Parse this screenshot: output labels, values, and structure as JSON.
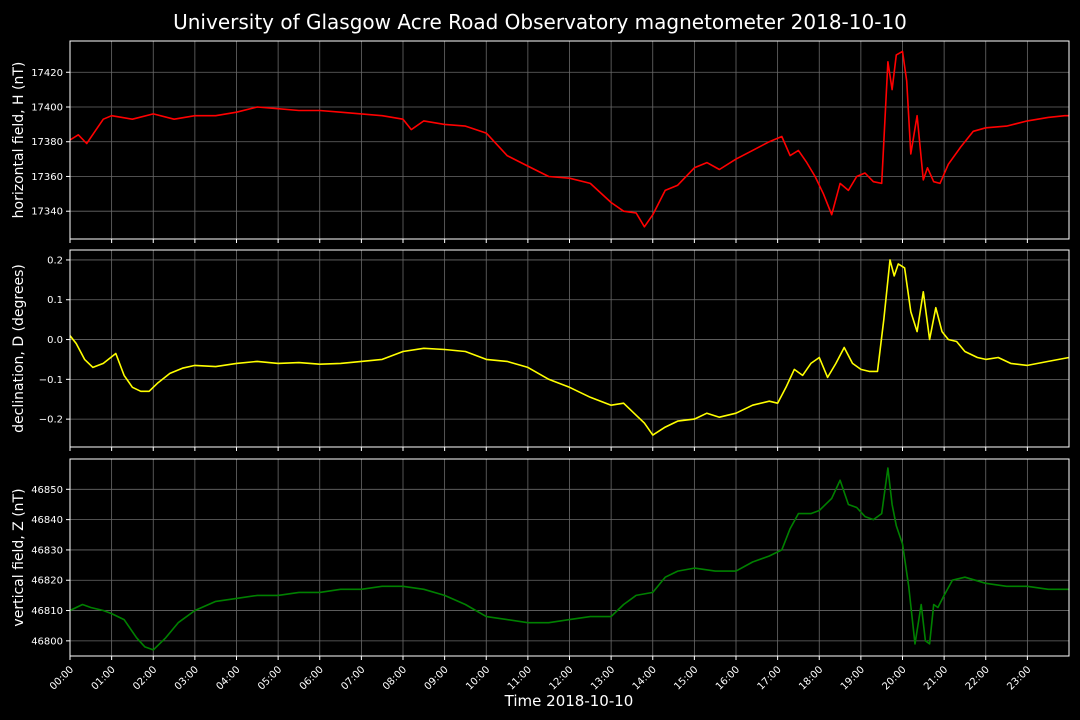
{
  "title": "University of Glasgow Acre Road Observatory magnetometer 2018-10-10",
  "xlabel": "Time 2018-10-10",
  "x_ticks": [
    "00:00",
    "01:00",
    "02:00",
    "03:00",
    "04:00",
    "05:00",
    "06:00",
    "07:00",
    "08:00",
    "09:00",
    "10:00",
    "11:00",
    "12:00",
    "13:00",
    "14:00",
    "15:00",
    "16:00",
    "17:00",
    "18:00",
    "19:00",
    "20:00",
    "21:00",
    "22:00",
    "23:00"
  ],
  "chart_data": [
    {
      "type": "line",
      "ylabel": "horizontal field, H (nT)",
      "ylim": [
        17324,
        17438
      ],
      "y_ticks": [
        17340,
        17360,
        17380,
        17400,
        17420
      ],
      "y_tick_labels": [
        "17340",
        "17360",
        "17380",
        "17400",
        "17420"
      ],
      "xlim_hours": [
        0,
        24
      ],
      "grid": true,
      "color": "#ff0000",
      "series": [
        {
          "x": [
            0,
            0.2,
            0.4,
            0.6,
            0.8,
            1,
            1.5,
            2,
            2.5,
            3,
            3.5,
            4,
            4.5,
            5,
            5.5,
            6,
            6.5,
            7,
            7.5,
            8,
            8.2,
            8.5,
            9,
            9.5,
            10,
            10.5,
            11,
            11.5,
            12,
            12.5,
            13,
            13.3,
            13.6,
            13.8,
            14,
            14.3,
            14.6,
            15,
            15.3,
            15.6,
            16,
            16.4,
            16.8,
            17.1,
            17.3,
            17.5,
            17.7,
            17.9,
            18.1,
            18.3,
            18.5,
            18.7,
            18.9,
            19.1,
            19.3,
            19.5,
            19.65,
            19.75,
            19.85,
            20,
            20.1,
            20.2,
            20.35,
            20.5,
            20.6,
            20.75,
            20.9,
            21.1,
            21.4,
            21.7,
            22,
            22.5,
            23,
            23.5,
            23.9,
            24
          ],
          "y": [
            17381,
            17384,
            17379,
            17386,
            17393,
            17395,
            17393,
            17396,
            17393,
            17395,
            17395,
            17397,
            17400,
            17399,
            17398,
            17398,
            17397,
            17396,
            17395,
            17393,
            17387,
            17392,
            17390,
            17389,
            17385,
            17372,
            17366,
            17360,
            17359,
            17356,
            17345,
            17340,
            17339,
            17331,
            17338,
            17352,
            17355,
            17365,
            17368,
            17364,
            17370,
            17375,
            17380,
            17383,
            17372,
            17375,
            17368,
            17360,
            17350,
            17338,
            17356,
            17352,
            17360,
            17362,
            17357,
            17356,
            17426,
            17410,
            17430,
            17432,
            17415,
            17373,
            17395,
            17358,
            17365,
            17357,
            17356,
            17367,
            17377,
            17386,
            17388,
            17389,
            17392,
            17394,
            17395,
            17395
          ]
        }
      ]
    },
    {
      "type": "line",
      "ylabel": "declination, D (degrees)",
      "ylim": [
        -0.27,
        0.225
      ],
      "y_ticks": [
        -0.2,
        -0.1,
        0.0,
        0.1,
        0.2
      ],
      "y_tick_labels": [
        "−0.2",
        "−0.1",
        "0.0",
        "0.1",
        "0.2"
      ],
      "xlim_hours": [
        0,
        24
      ],
      "grid": true,
      "color": "#ffff00",
      "series": [
        {
          "x": [
            0,
            0.15,
            0.35,
            0.55,
            0.8,
            1.1,
            1.3,
            1.5,
            1.7,
            1.9,
            2.1,
            2.4,
            2.7,
            3,
            3.5,
            4,
            4.5,
            5,
            5.5,
            6,
            6.5,
            7,
            7.5,
            8,
            8.5,
            9,
            9.5,
            10,
            10.5,
            11,
            11.5,
            12,
            12.5,
            13,
            13.3,
            13.6,
            13.8,
            14,
            14.3,
            14.6,
            15,
            15.3,
            15.6,
            16,
            16.4,
            16.8,
            17,
            17.2,
            17.4,
            17.6,
            17.8,
            18,
            18.2,
            18.4,
            18.6,
            18.8,
            19,
            19.2,
            19.4,
            19.55,
            19.7,
            19.8,
            19.9,
            20.05,
            20.2,
            20.35,
            20.5,
            20.65,
            20.8,
            20.95,
            21.1,
            21.3,
            21.5,
            21.8,
            22,
            22.3,
            22.6,
            23,
            23.5,
            24
          ],
          "y": [
            0.01,
            -0.01,
            -0.05,
            -0.07,
            -0.06,
            -0.035,
            -0.09,
            -0.12,
            -0.13,
            -0.13,
            -0.11,
            -0.085,
            -0.072,
            -0.065,
            -0.068,
            -0.06,
            -0.055,
            -0.06,
            -0.058,
            -0.062,
            -0.06,
            -0.055,
            -0.05,
            -0.03,
            -0.022,
            -0.025,
            -0.03,
            -0.05,
            -0.055,
            -0.07,
            -0.1,
            -0.12,
            -0.145,
            -0.165,
            -0.16,
            -0.19,
            -0.21,
            -0.24,
            -0.22,
            -0.205,
            -0.2,
            -0.185,
            -0.195,
            -0.185,
            -0.165,
            -0.155,
            -0.16,
            -0.12,
            -0.075,
            -0.09,
            -0.06,
            -0.045,
            -0.095,
            -0.06,
            -0.02,
            -0.06,
            -0.075,
            -0.08,
            -0.08,
            0.05,
            0.2,
            0.16,
            0.19,
            0.18,
            0.07,
            0.02,
            0.12,
            0,
            0.08,
            0.02,
            0,
            -0.005,
            -0.03,
            -0.045,
            -0.05,
            -0.045,
            -0.06,
            -0.065,
            -0.055,
            -0.045
          ]
        }
      ]
    },
    {
      "type": "line",
      "ylabel": "vertical field, Z (nT)",
      "ylim": [
        46795,
        46860
      ],
      "y_ticks": [
        46800,
        46810,
        46820,
        46830,
        46840,
        46850
      ],
      "y_tick_labels": [
        "46800",
        "46810",
        "46820",
        "46830",
        "46840",
        "46850"
      ],
      "xlim_hours": [
        0,
        24
      ],
      "grid": true,
      "color": "#008000",
      "series": [
        {
          "x": [
            0,
            0.3,
            0.5,
            0.8,
            1,
            1.3,
            1.6,
            1.8,
            2,
            2.3,
            2.6,
            3,
            3.5,
            4,
            4.5,
            5,
            5.5,
            6,
            6.5,
            7,
            7.5,
            8,
            8.5,
            9,
            9.5,
            10,
            10.5,
            11,
            11.5,
            12,
            12.5,
            13,
            13.3,
            13.6,
            14,
            14.3,
            14.6,
            15,
            15.5,
            16,
            16.4,
            16.8,
            17.1,
            17.3,
            17.5,
            17.8,
            18,
            18.3,
            18.5,
            18.7,
            18.9,
            19.1,
            19.3,
            19.5,
            19.65,
            19.75,
            19.85,
            20,
            20.15,
            20.3,
            20.45,
            20.55,
            20.65,
            20.75,
            20.85,
            21,
            21.2,
            21.5,
            22,
            22.5,
            23,
            23.5,
            24
          ],
          "y": [
            46810,
            46812,
            46811,
            46810,
            46809,
            46807,
            46801,
            46798,
            46797,
            46801,
            46806,
            46810,
            46813,
            46814,
            46815,
            46815,
            46816,
            46816,
            46817,
            46817,
            46818,
            46818,
            46817,
            46815,
            46812,
            46808,
            46807,
            46806,
            46806,
            46807,
            46808,
            46808,
            46812,
            46815,
            46816,
            46821,
            46823,
            46824,
            46823,
            46823,
            46826,
            46828,
            46830,
            46837,
            46842,
            46842,
            46843,
            46847,
            46853,
            46845,
            46844,
            46841,
            46840,
            46842,
            46857,
            46845,
            46838,
            46832,
            46818,
            46799,
            46812,
            46800,
            46799,
            46812,
            46811,
            46815,
            46820,
            46821,
            46819,
            46818,
            46818,
            46817,
            46817
          ]
        }
      ]
    }
  ]
}
